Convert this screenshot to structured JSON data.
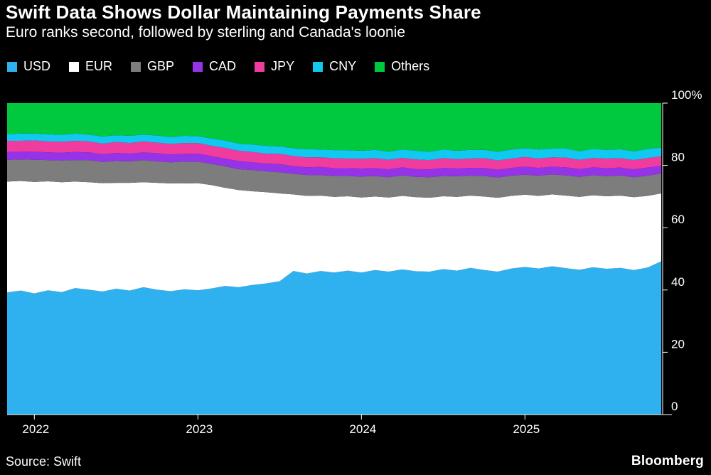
{
  "header": {
    "title": "Swift Data Shows Dollar Maintaining Payments Share",
    "subtitle": "Euro ranks second, followed by sterling and Canada's loonie"
  },
  "footer": {
    "source": "Source: Swift",
    "brand": "Bloomberg"
  },
  "colors": {
    "background": "#000000",
    "text": "#ffffff",
    "axis": "#ffffff"
  },
  "chart_data": {
    "type": "area",
    "stacked": true,
    "normalized_to_100": true,
    "unit": "%",
    "x_frequency": "monthly",
    "x_range": [
      "2021-11",
      "2025-11"
    ],
    "x_tick_labels": [
      "2022",
      "2023",
      "2024",
      "2025"
    ],
    "x_tick_indices": [
      2,
      14,
      26,
      38
    ],
    "y_tick_labels": [
      "100%",
      "80",
      "60",
      "40",
      "20",
      "0"
    ],
    "y_tick_values": [
      100,
      80,
      60,
      40,
      20,
      0
    ],
    "ylim": [
      0,
      100
    ],
    "legend_position": "top",
    "grid": false,
    "series": [
      {
        "name": "USD",
        "color": "#2fb1f0",
        "values": [
          39.2,
          39.8,
          38.9,
          39.9,
          39.3,
          40.6,
          40.1,
          39.5,
          40.4,
          39.8,
          40.9,
          40.1,
          39.6,
          40.2,
          39.9,
          40.5,
          41.3,
          40.9,
          41.6,
          42.1,
          42.8,
          46.1,
          45.3,
          46.1,
          45.6,
          46.2,
          45.6,
          46.4,
          45.9,
          46.6,
          46.0,
          45.9,
          46.7,
          46.2,
          47.1,
          46.4,
          45.9,
          46.9,
          47.4,
          46.9,
          47.6,
          47.0,
          46.5,
          47.3,
          46.8,
          47.1,
          46.4,
          47.2,
          49.2
        ]
      },
      {
        "name": "EUR",
        "color": "#ffffff",
        "values": [
          35.6,
          35.2,
          35.8,
          35.0,
          35.3,
          34.2,
          34.5,
          34.8,
          34.0,
          34.6,
          33.7,
          34.3,
          34.6,
          34.0,
          34.4,
          33.2,
          31.5,
          31.2,
          30.1,
          29.3,
          28.2,
          24.6,
          24.9,
          24.2,
          24.3,
          23.9,
          24.1,
          23.6,
          23.8,
          23.6,
          23.8,
          23.7,
          23.4,
          23.7,
          23.2,
          23.6,
          23.7,
          23.3,
          23.2,
          23.3,
          23.1,
          23.3,
          23.4,
          23.1,
          23.3,
          23.2,
          23.4,
          23.0,
          21.8
        ]
      },
      {
        "name": "GBP",
        "color": "#7d7d7d",
        "values": [
          7.0,
          6.9,
          7.1,
          6.8,
          7.0,
          6.9,
          7.1,
          6.8,
          7.0,
          6.9,
          7.1,
          6.9,
          6.8,
          7.0,
          6.9,
          6.8,
          6.9,
          6.7,
          6.8,
          6.7,
          6.8,
          6.6,
          6.7,
          6.6,
          6.7,
          6.5,
          6.7,
          6.6,
          6.5,
          6.6,
          6.5,
          6.6,
          6.5,
          6.6,
          6.4,
          6.6,
          6.5,
          6.5,
          6.4,
          6.5,
          6.4,
          6.5,
          6.4,
          6.5,
          6.4,
          6.5,
          6.4,
          6.5,
          6.4
        ]
      },
      {
        "name": "CAD",
        "color": "#9533e8",
        "values": [
          2.5,
          2.5,
          2.6,
          2.5,
          2.5,
          2.6,
          2.5,
          2.5,
          2.6,
          2.5,
          2.5,
          2.6,
          2.5,
          2.5,
          2.6,
          2.5,
          2.5,
          2.6,
          2.5,
          2.5,
          2.6,
          2.5,
          2.5,
          2.6,
          2.5,
          2.5,
          2.6,
          2.5,
          2.5,
          2.6,
          2.5,
          2.5,
          2.6,
          2.5,
          2.5,
          2.6,
          2.5,
          2.5,
          2.6,
          2.5,
          2.5,
          2.6,
          2.5,
          2.5,
          2.6,
          2.5,
          2.5,
          2.6,
          2.5
        ]
      },
      {
        "name": "JPY",
        "color": "#f03c9e",
        "values": [
          3.6,
          3.5,
          3.6,
          3.5,
          3.5,
          3.6,
          3.5,
          3.4,
          3.5,
          3.4,
          3.5,
          3.4,
          3.4,
          3.5,
          3.4,
          3.3,
          3.4,
          3.3,
          3.3,
          3.2,
          3.3,
          3.2,
          3.2,
          3.1,
          3.2,
          3.1,
          3.1,
          3.2,
          3.1,
          3.0,
          3.1,
          3.0,
          3.1,
          3.0,
          3.0,
          3.1,
          3.0,
          3.0,
          3.1,
          3.0,
          3.0,
          3.1,
          3.0,
          3.0,
          3.1,
          3.0,
          3.0,
          3.1,
          3.0
        ]
      },
      {
        "name": "CNY",
        "color": "#10c8f0",
        "values": [
          2.2,
          2.3,
          2.2,
          2.3,
          2.2,
          2.3,
          2.2,
          2.3,
          2.2,
          2.3,
          2.2,
          2.3,
          2.2,
          2.3,
          2.2,
          2.3,
          2.4,
          2.3,
          2.4,
          2.5,
          2.4,
          2.5,
          2.6,
          2.5,
          2.6,
          2.7,
          2.6,
          2.7,
          2.6,
          2.7,
          2.8,
          2.7,
          2.8,
          2.7,
          2.8,
          2.7,
          2.8,
          2.9,
          2.8,
          2.9,
          2.8,
          2.9,
          2.8,
          2.9,
          2.8,
          2.9,
          2.8,
          2.9,
          2.8
        ]
      },
      {
        "name": "Others",
        "color": "#00c93f",
        "remainder": true,
        "values": null,
        "note": "fills remainder of stack up to 100%"
      }
    ]
  }
}
